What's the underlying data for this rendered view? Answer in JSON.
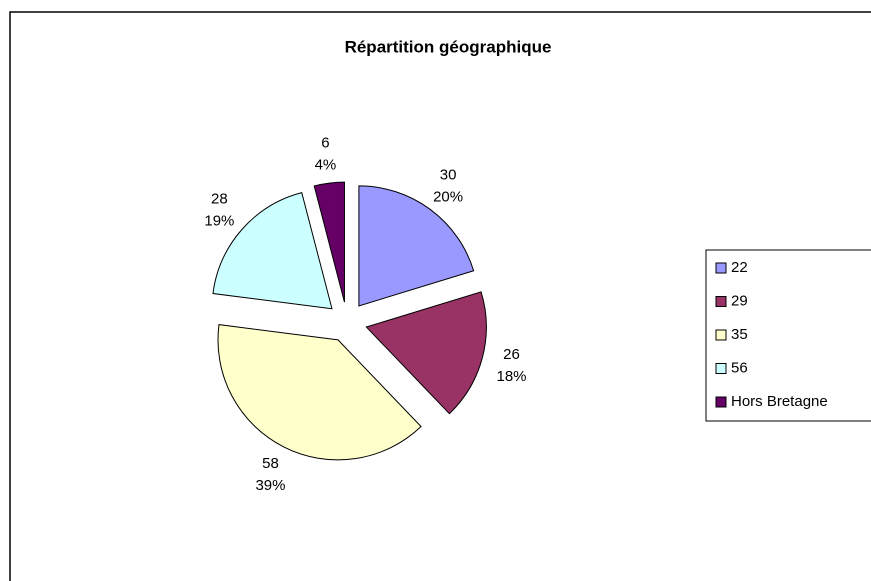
{
  "chart_data": {
    "type": "pie",
    "title": "Répartition géographique",
    "categories": [
      "22",
      "29",
      "35",
      "56",
      "Hors Bretagne"
    ],
    "values": [
      30,
      26,
      58,
      28,
      6
    ],
    "percent_labels": [
      "20%",
      "18%",
      "39%",
      "19%",
      "4%"
    ],
    "colors": [
      "#9999ff",
      "#993366",
      "#ffffcc",
      "#ccffff",
      "#660066"
    ],
    "legend": "right"
  }
}
